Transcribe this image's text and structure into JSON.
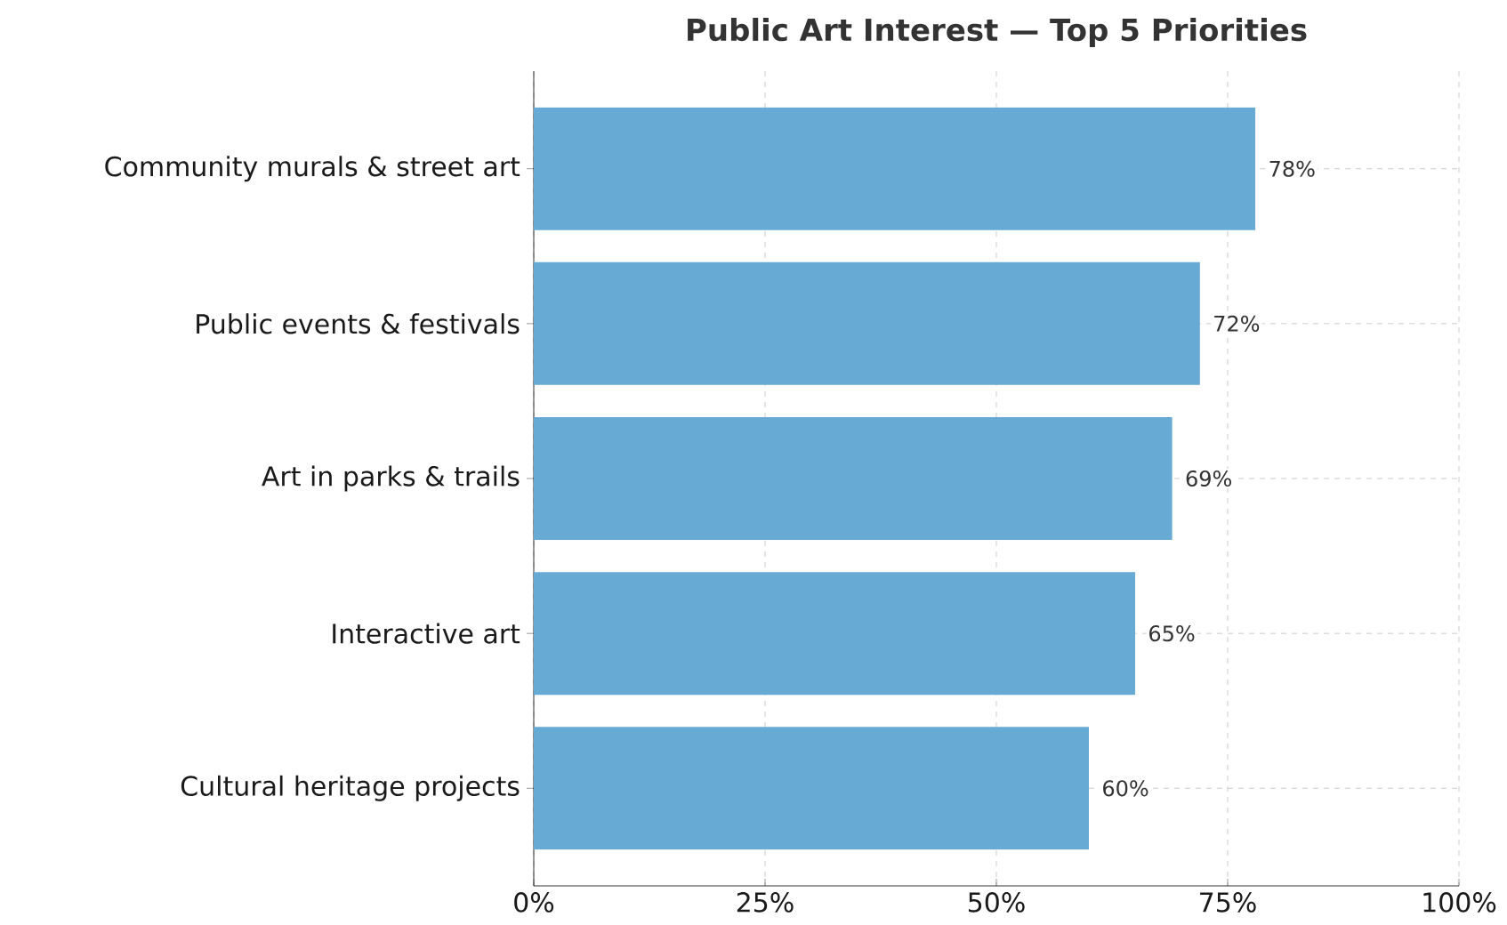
{
  "chart_data": {
    "type": "bar",
    "orientation": "horizontal",
    "title": "Public Art Interest — Top 5 Priorities",
    "categories": [
      "Community murals & street art",
      "Public events & festivals",
      "Art in parks & trails",
      "Interactive art",
      "Cultural heritage projects"
    ],
    "values": [
      78,
      72,
      69,
      65,
      60
    ],
    "value_labels": [
      "78%",
      "72%",
      "69%",
      "65%",
      "60%"
    ],
    "color": "#67aad3",
    "xlim": [
      0,
      100
    ],
    "xticks": [
      {
        "value": 0,
        "label": "0%"
      },
      {
        "value": 25,
        "label": "25%"
      },
      {
        "value": 50,
        "label": "50%"
      },
      {
        "value": 75,
        "label": "75%"
      },
      {
        "value": 100,
        "label": "100%"
      }
    ],
    "grid": true
  }
}
